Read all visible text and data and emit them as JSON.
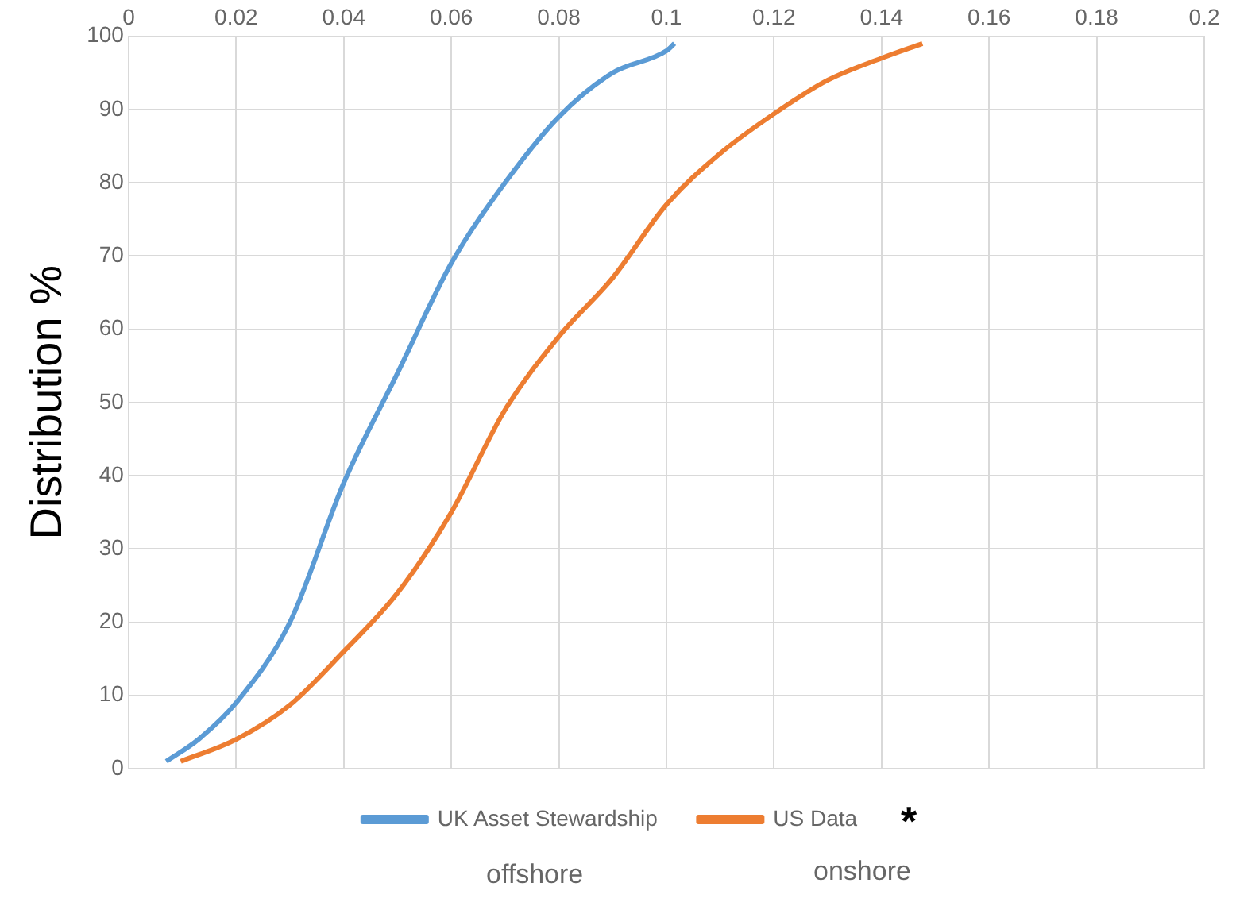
{
  "chart_data": {
    "type": "line",
    "ylabel": "Distribution %",
    "xlim": [
      0,
      0.2
    ],
    "xticks": [
      0,
      0.02,
      0.04,
      0.06,
      0.08,
      0.1,
      0.12,
      0.14,
      0.16,
      0.18,
      0.2
    ],
    "ylim": [
      0,
      100
    ],
    "yticks": [
      0,
      10,
      20,
      30,
      40,
      50,
      60,
      70,
      80,
      90,
      100
    ],
    "grid": true,
    "legend": "bottom",
    "marker": "none",
    "line_style": "solid",
    "annotations": [
      "offshore",
      "onshore",
      "*"
    ],
    "series": [
      {
        "name": "UK Asset Stewardship",
        "color": "#5b9bd5",
        "x": [
          0.007,
          0.013,
          0.02,
          0.03,
          0.04,
          0.05,
          0.06,
          0.07,
          0.08,
          0.09,
          0.1,
          0.1015
        ],
        "values": [
          1,
          4,
          9,
          20,
          39,
          54,
          69,
          80,
          89,
          95,
          98,
          99
        ]
      },
      {
        "name": "US Data",
        "color": "#ed7d31",
        "x": [
          0.0097,
          0.02,
          0.03,
          0.04,
          0.05,
          0.06,
          0.07,
          0.08,
          0.09,
          0.1,
          0.11,
          0.12,
          0.13,
          0.14,
          0.1476
        ],
        "values": [
          1,
          4,
          8.7,
          16,
          24,
          35,
          49,
          59,
          67,
          77,
          84,
          89.4,
          94,
          97,
          99
        ]
      }
    ]
  }
}
